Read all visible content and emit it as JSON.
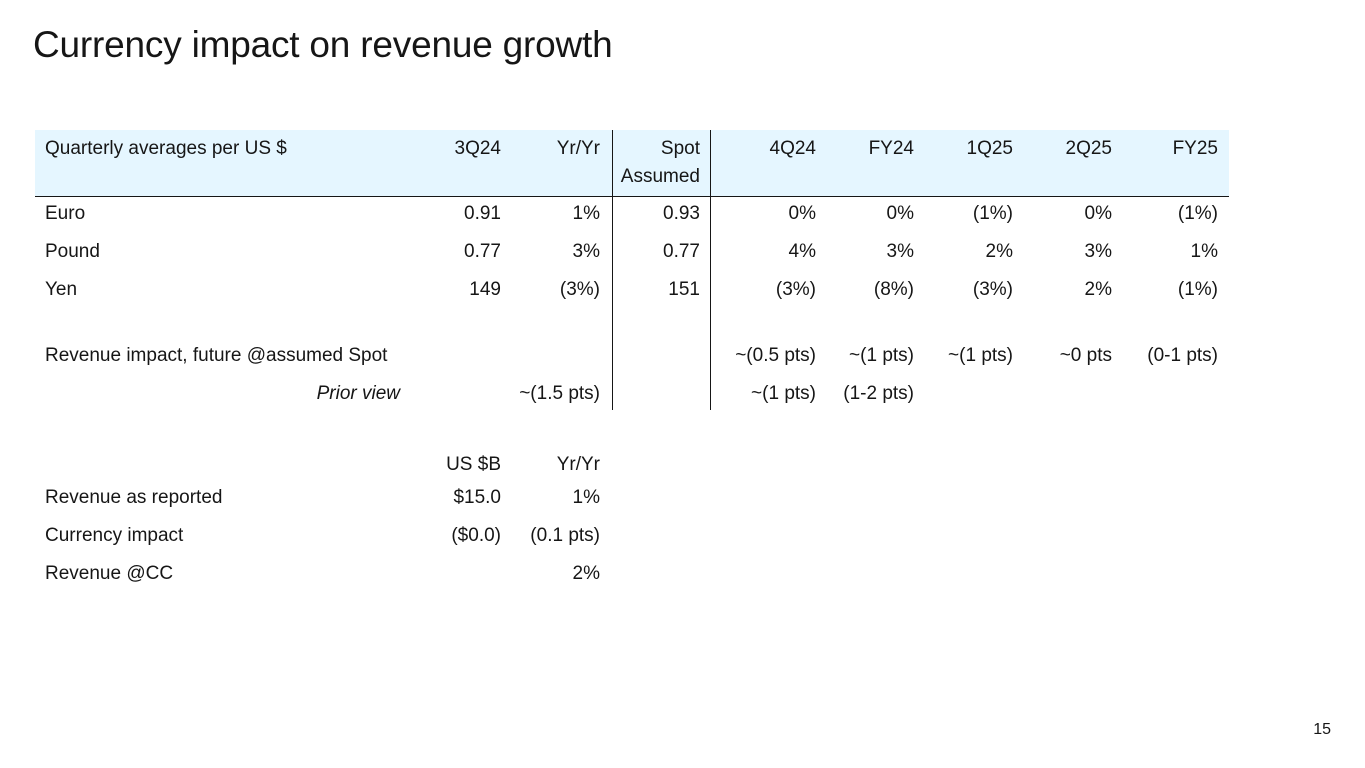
{
  "title": "Currency impact on revenue growth",
  "page_number": "15",
  "fx_table": {
    "headers": {
      "label": "Quarterly averages per US $",
      "q3": "3Q24",
      "yy": "Yr/Yr",
      "spot_line1": "Spot",
      "spot_line2": "Assumed",
      "q4": "4Q24",
      "fy24": "FY24",
      "q1": "1Q25",
      "q2": "2Q25",
      "fy25": "FY25"
    },
    "rows": [
      {
        "label": "Euro",
        "q3": "0.91",
        "yy": "1%",
        "spot": "0.93",
        "q4": "0%",
        "fy24": "0%",
        "q1": "(1%)",
        "q2": "0%",
        "fy25": "(1%)"
      },
      {
        "label": "Pound",
        "q3": "0.77",
        "yy": "3%",
        "spot": "0.77",
        "q4": "4%",
        "fy24": "3%",
        "q1": "2%",
        "q2": "3%",
        "fy25": "1%"
      },
      {
        "label": "Yen",
        "q3": "149",
        "yy": "(3%)",
        "spot": "151",
        "q4": "(3%)",
        "fy24": "(8%)",
        "q1": "(3%)",
        "q2": "2%",
        "fy25": "(1%)"
      }
    ],
    "impact": {
      "label": "Revenue impact, future @assumed Spot",
      "q4": "~(0.5 pts)",
      "fy24": "~(1 pts)",
      "q1": "~(1 pts)",
      "q2": "~0 pts",
      "fy25": "(0-1 pts)"
    },
    "prior": {
      "label": "Prior view",
      "yy": "~(1.5 pts)",
      "q4": "~(1 pts)",
      "fy24": "(1-2 pts)"
    }
  },
  "revenue_table": {
    "headers": {
      "usb": "US $B",
      "yy": "Yr/Yr"
    },
    "rows": [
      {
        "label": "Revenue as reported",
        "usb": "$15.0",
        "yy": "1%"
      },
      {
        "label": "Currency impact",
        "usb": "($0.0)",
        "yy": "(0.1 pts)"
      },
      {
        "label": "Revenue @CC",
        "usb": "",
        "yy": "2%"
      }
    ]
  },
  "colors": {
    "header_band": "#e5f6ff",
    "text": "#161616"
  }
}
